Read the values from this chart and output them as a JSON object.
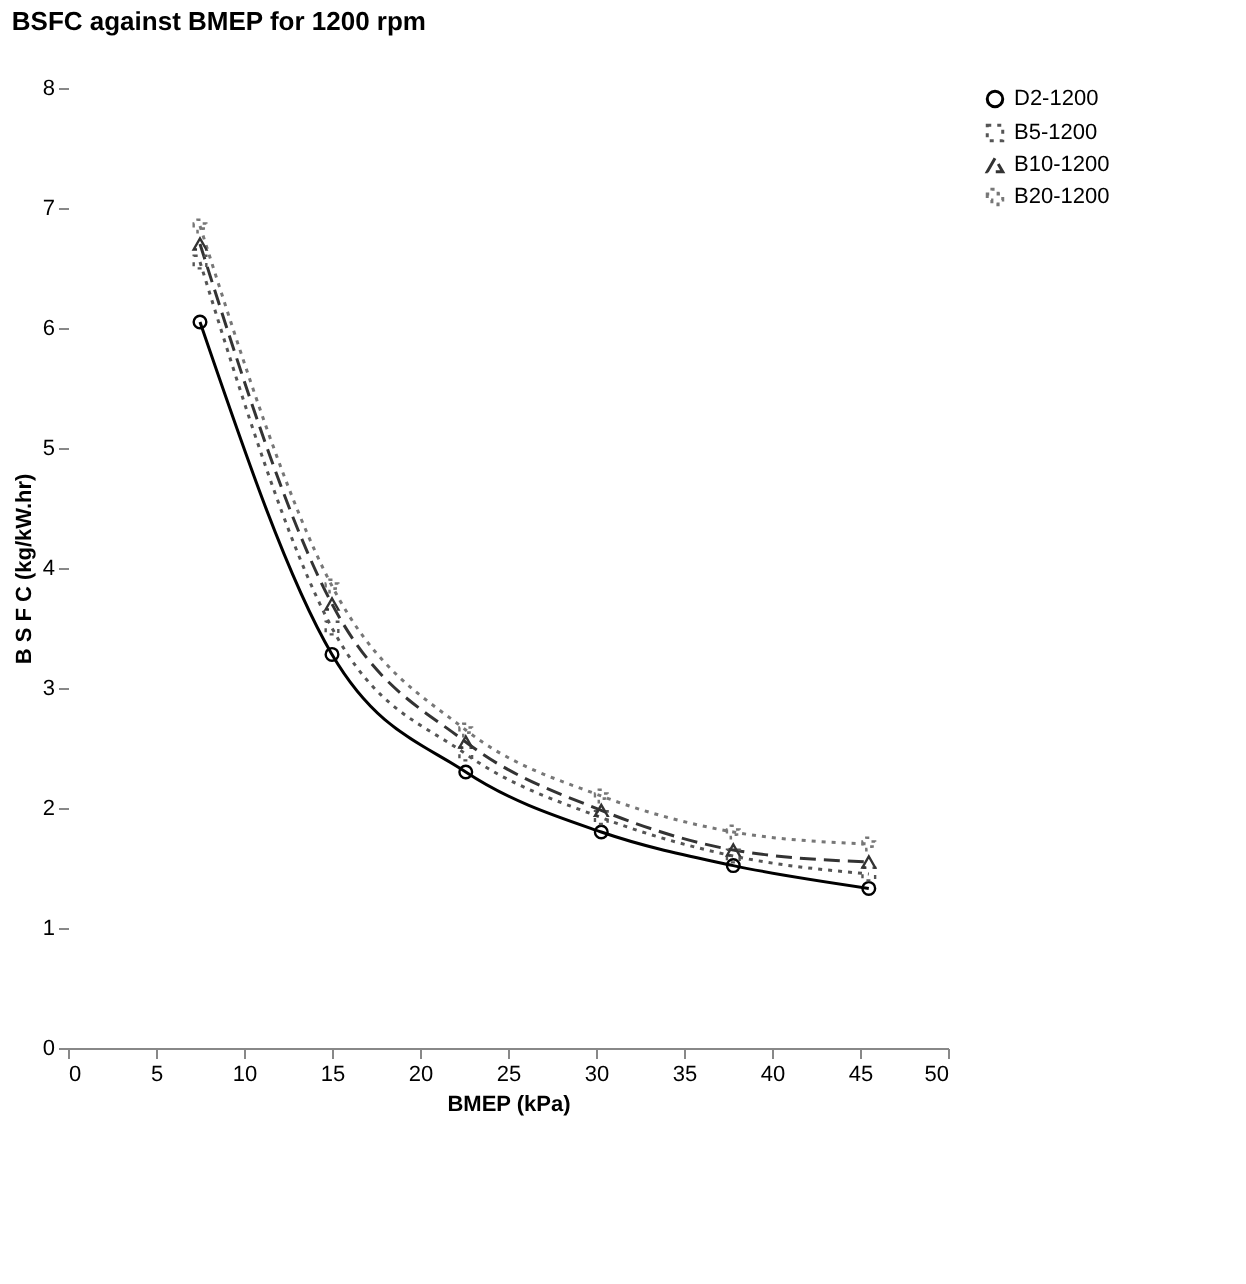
{
  "chart_data": {
    "type": "line",
    "title": "BSFC against BMEP for 1200 rpm",
    "xlabel": "BMEP (kPa)",
    "ylabel": "B S F C  (kg/kW.hr)",
    "x": [
      7.5,
      15,
      22.6,
      30.3,
      37.8,
      45.5
    ],
    "series": [
      {
        "name": "D2-1200",
        "color": "#000000",
        "line_style": "solid",
        "marker": "circle",
        "values": [
          6.05,
          3.28,
          2.3,
          1.8,
          1.52,
          1.33
        ]
      },
      {
        "name": "B5-1200",
        "color": "#555555",
        "line_style": "dotted",
        "marker": "square",
        "values": [
          6.55,
          3.5,
          2.45,
          1.92,
          1.6,
          1.45
        ]
      },
      {
        "name": "B10-1200",
        "color": "#333333",
        "line_style": "dashed",
        "marker": "triangle",
        "values": [
          6.7,
          3.7,
          2.55,
          1.98,
          1.65,
          1.55
        ]
      },
      {
        "name": "B20-1200",
        "color": "#777777",
        "line_style": "dotted",
        "marker": "cross",
        "values": [
          6.85,
          3.85,
          2.65,
          2.1,
          1.8,
          1.7
        ]
      }
    ],
    "xlim": [
      0,
      50
    ],
    "xticks": [
      0,
      5,
      10,
      15,
      20,
      25,
      30,
      35,
      40,
      45,
      50
    ],
    "ylim": [
      0,
      8
    ],
    "yticks": [
      0,
      1,
      2,
      3,
      4,
      5,
      6,
      7,
      8
    ],
    "grid": false,
    "legend": "right"
  }
}
